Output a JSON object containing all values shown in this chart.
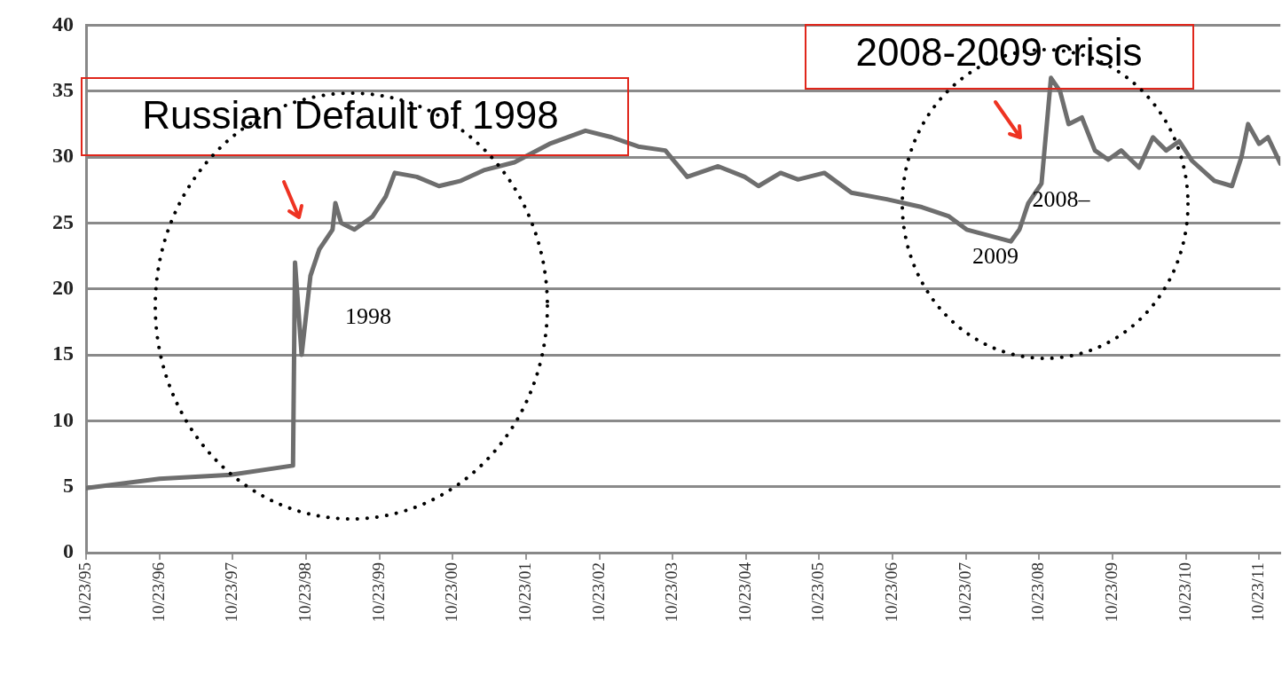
{
  "chart_data": {
    "type": "line",
    "x": [
      "1995-10-23",
      "1996-10-23",
      "1997-10-12",
      "1998-08-19",
      "1998-08-29",
      "1998-10-01",
      "1998-11-14",
      "1998-12-28",
      "1999-03-04",
      "1999-03-18",
      "1999-04-16",
      "1999-06-21",
      "1999-09-20",
      "1999-11-24",
      "2000-01-08",
      "2000-04-27",
      "2000-08-15",
      "2000-12-02",
      "2001-03-26",
      "2001-08-26",
      "2002-02-17",
      "2002-08-15",
      "2002-12-24",
      "2003-05-05",
      "2003-09-17",
      "2004-01-04",
      "2004-06-06",
      "2004-10-16",
      "2004-12-24",
      "2005-04-13",
      "2005-07-09",
      "2005-11-17",
      "2006-04-01",
      "2006-09-24",
      "2007-03-18",
      "2007-07-31",
      "2007-10-27",
      "2008-06-03",
      "2008-07-16",
      "2008-08-29",
      "2008-11-03",
      "2008-12-20",
      "2009-02-03",
      "2009-03-18",
      "2009-05-23",
      "2009-07-27",
      "2009-10-01",
      "2009-12-05",
      "2010-03-04",
      "2010-05-12",
      "2010-07-17",
      "2010-09-20",
      "2010-11-24",
      "2011-03-14",
      "2011-06-10",
      "2011-07-27",
      "2011-08-29",
      "2011-10-23",
      "2011-12-06",
      "2012-02-06"
    ],
    "series": [
      {
        "color": "#6e6e6e",
        "values": [
          4.9,
          5.6,
          5.9,
          6.6,
          22,
          15,
          21,
          23,
          24.5,
          26.5,
          25,
          24.5,
          25.5,
          27,
          28.8,
          28.5,
          27.8,
          28.2,
          29,
          29.6,
          31,
          32,
          31.5,
          30.8,
          30.5,
          28.5,
          29.3,
          28.5,
          27.8,
          28.8,
          28.3,
          28.8,
          27.3,
          26.8,
          26.2,
          25.5,
          24.5,
          23.6,
          24.5,
          26.5,
          28,
          36,
          35,
          32.5,
          33,
          30.5,
          29.8,
          30.5,
          29.2,
          31.5,
          30.5,
          31.2,
          29.7,
          28.2,
          27.8,
          30,
          32.5,
          31,
          31.5,
          29.5
        ]
      }
    ],
    "xlim": [
      "1995-10-23",
      "2012-02-06"
    ],
    "xticks": [
      {
        "value": "1995-10-23",
        "label": "10/23/95"
      },
      {
        "value": "1996-10-23",
        "label": "10/23/96"
      },
      {
        "value": "1997-10-23",
        "label": "10/23/97"
      },
      {
        "value": "1998-10-23",
        "label": "10/23/98"
      },
      {
        "value": "1999-10-23",
        "label": "10/23/99"
      },
      {
        "value": "2000-10-23",
        "label": "10/23/00"
      },
      {
        "value": "2001-10-23",
        "label": "10/23/01"
      },
      {
        "value": "2002-10-23",
        "label": "10/23/02"
      },
      {
        "value": "2003-10-23",
        "label": "10/23/03"
      },
      {
        "value": "2004-10-23",
        "label": "10/23/04"
      },
      {
        "value": "2005-10-23",
        "label": "10/23/05"
      },
      {
        "value": "2006-10-23",
        "label": "10/23/06"
      },
      {
        "value": "2007-10-23",
        "label": "10/23/07"
      },
      {
        "value": "2008-10-23",
        "label": "10/23/08"
      },
      {
        "value": "2009-10-23",
        "label": "10/23/09"
      },
      {
        "value": "2010-10-23",
        "label": "10/23/10"
      },
      {
        "value": "2011-10-23",
        "label": "10/23/11"
      }
    ],
    "ylim": [
      0,
      40
    ],
    "yticks": [
      0,
      5,
      10,
      15,
      20,
      25,
      30,
      35,
      40
    ],
    "grid": "y",
    "legend": false,
    "marker": "none",
    "line_style": "solid",
    "annotations": [
      "Russian Default of 1998",
      "2008-2009 crisis",
      "1998",
      "2008–",
      "2009"
    ]
  }
}
